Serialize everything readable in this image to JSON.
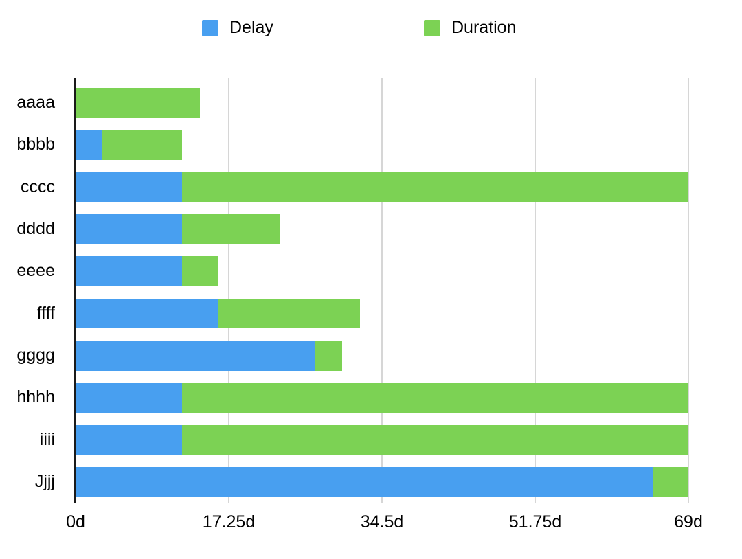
{
  "legend": {
    "items": [
      {
        "label": "Delay",
        "color": "#489FF0"
      },
      {
        "label": "Duration",
        "color": "#7CD254"
      }
    ]
  },
  "chart_data": {
    "type": "bar",
    "orientation": "horizontal",
    "stacked": true,
    "title": "",
    "xlabel": "",
    "ylabel": "",
    "unit": "d",
    "categories": [
      "aaaa",
      "bbbb",
      "cccc",
      "dddd",
      "eeee",
      "ffff",
      "gggg",
      "hhhh",
      "iiii",
      "Jjjj"
    ],
    "series": [
      {
        "name": "Delay",
        "color": "#489FF0",
        "values": [
          0,
          3,
          12,
          12,
          12,
          16,
          27,
          12,
          12,
          65
        ]
      },
      {
        "name": "Duration",
        "color": "#7CD254",
        "values": [
          14,
          9,
          57,
          11,
          4,
          16,
          3,
          57,
          57,
          4
        ]
      }
    ],
    "totals": [
      14,
      12,
      69,
      23,
      16,
      32,
      30,
      69,
      69,
      69
    ],
    "x_axis": {
      "min": 0,
      "max": 69,
      "ticks": [
        {
          "value": 0,
          "label": "0d"
        },
        {
          "value": 17.25,
          "label": "17.25d"
        },
        {
          "value": 34.5,
          "label": "34.5d"
        },
        {
          "value": 51.75,
          "label": "51.75d"
        },
        {
          "value": 69,
          "label": "69d"
        }
      ]
    },
    "grid": "vertical",
    "legend_position": "top",
    "colors": {
      "gridline": "#d6d6d6",
      "axis": "#1a1a1a",
      "text": "#000000",
      "background": "#ffffff"
    }
  }
}
